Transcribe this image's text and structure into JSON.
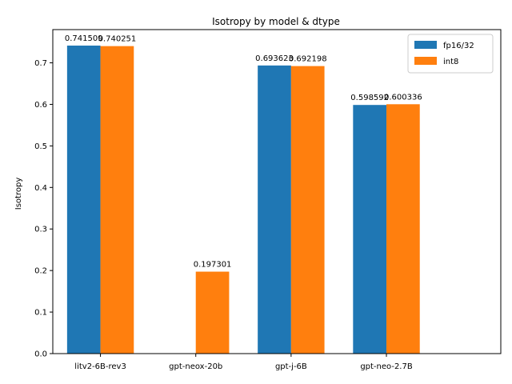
{
  "chart_data": {
    "type": "bar",
    "title": "Isotropy by model & dtype",
    "xlabel": "",
    "ylabel": "Isotropy",
    "categories": [
      "litv2-6B-rev3",
      "gpt-neox-20b",
      "gpt-j-6B",
      "gpt-neo-2.7B"
    ],
    "series": [
      {
        "name": "fp16/32",
        "color": "#1f77b4",
        "values": [
          0.741509,
          null,
          0.693623,
          0.598592
        ],
        "labels": [
          "0.741509",
          "",
          "0.693623",
          "0.598592"
        ]
      },
      {
        "name": "int8",
        "color": "#ff7f0e",
        "values": [
          0.740251,
          0.197301,
          0.692198,
          0.600336
        ],
        "labels": [
          "0.740251",
          "0.197301",
          "0.692198",
          "0.600336"
        ]
      }
    ],
    "ylim": [
      0,
      0.78
    ],
    "yticks": [
      0.0,
      0.1,
      0.2,
      0.3,
      0.4,
      0.5,
      0.6,
      0.7
    ],
    "ytick_labels": [
      "0.0",
      "0.1",
      "0.2",
      "0.3",
      "0.4",
      "0.5",
      "0.6",
      "0.7"
    ],
    "grid": false,
    "legend_position": "top-right"
  }
}
